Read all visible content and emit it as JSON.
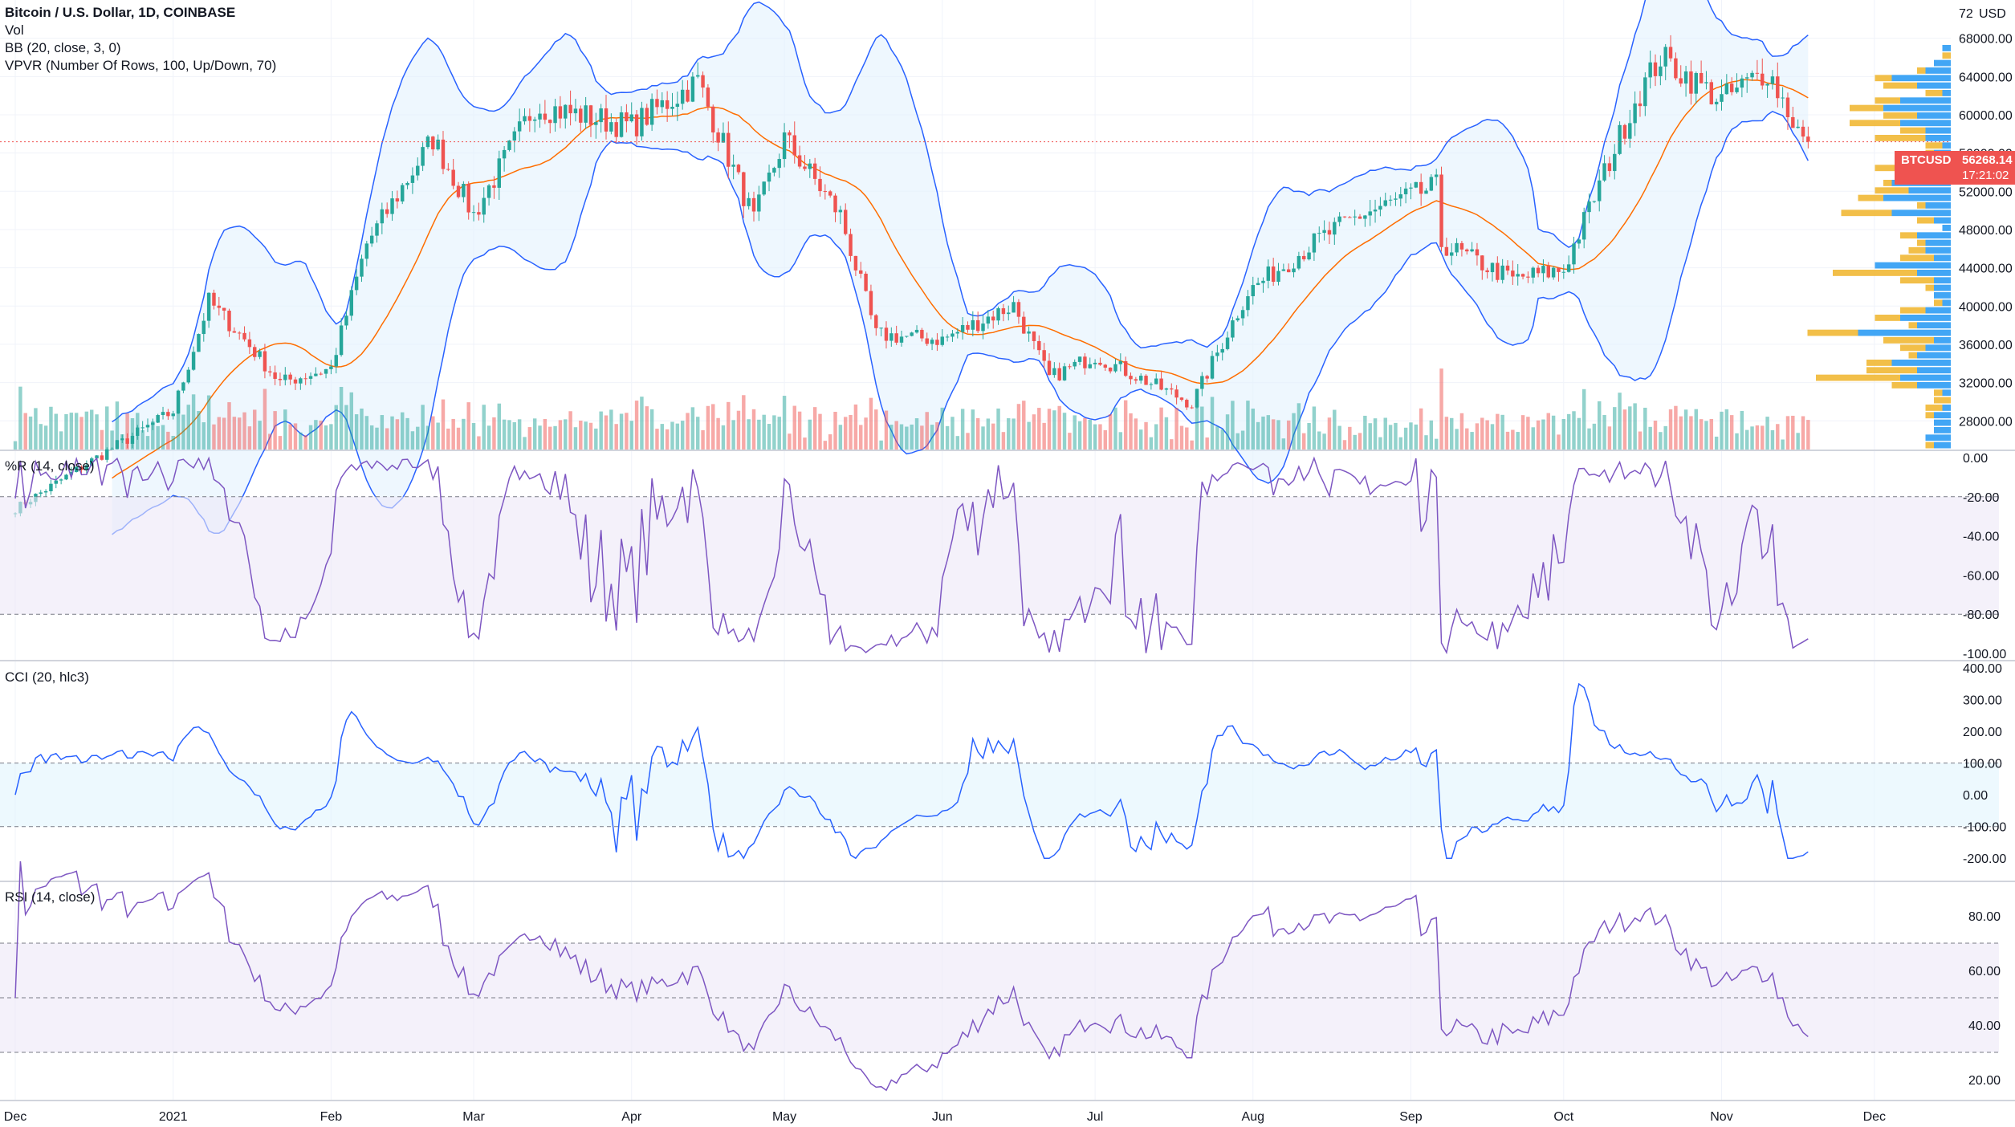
{
  "header": {
    "title": "Bitcoin / U.S. Dollar, 1D, COINBASE",
    "studies": [
      "Vol",
      "BB (20, close, 3, 0)",
      "VPVR (Number Of Rows, 100, Up/Down, 70)"
    ]
  },
  "panes": {
    "williams": "%R (14, close)",
    "cci": "CCI (20, hlc3)",
    "rsi": "RSI (14, close)"
  },
  "price_tag": {
    "symbol": "BTCUSD",
    "value": "56268.14",
    "countdown": "17:21:02"
  },
  "price_axis": {
    "unit": "USD",
    "top_label": "72",
    "ticks": [
      "68000.00",
      "64000.00",
      "60000.00",
      "56000.00",
      "52000.00",
      "48000.00",
      "44000.00",
      "40000.00",
      "36000.00",
      "32000.00",
      "28000.00"
    ]
  },
  "wr_axis": [
    "0.00",
    "-20.00",
    "-40.00",
    "-60.00",
    "-80.00",
    "-100.00"
  ],
  "cci_axis": [
    "400.00",
    "300.00",
    "200.00",
    "100.00",
    "0.00",
    "-100.00",
    "-200.00"
  ],
  "rsi_axis": [
    "80.00",
    "60.00",
    "40.00",
    "20.00"
  ],
  "time_axis": [
    "Dec",
    "2021",
    "Feb",
    "Mar",
    "Apr",
    "May",
    "Jun",
    "Jul",
    "Aug",
    "Sep",
    "Oct",
    "Nov",
    "Dec"
  ],
  "colors": {
    "up": "#26a69a",
    "down": "#ef5350",
    "bb_line": "#2962ff",
    "bb_fill": "#e3f2fd",
    "basis": "#ff6d00",
    "vp_up": "#2196f3",
    "vp_down": "#f0b429",
    "osc_line": "#7e57c2",
    "osc_fill": "#ede7f6",
    "cci_line": "#2962ff",
    "cci_fill": "#e1f5fe"
  },
  "chart_data": {
    "type": "candlestick",
    "symbol": "BTCUSD",
    "x": [
      "2020-12-01",
      "2020-12-15",
      "2021-01-01",
      "2021-01-08",
      "2021-01-15",
      "2021-01-22",
      "2021-02-01",
      "2021-02-08",
      "2021-02-21",
      "2021-03-01",
      "2021-03-13",
      "2021-04-01",
      "2021-04-14",
      "2021-04-25",
      "2021-05-01",
      "2021-05-12",
      "2021-05-19",
      "2021-06-01",
      "2021-06-15",
      "2021-06-22",
      "2021-07-01",
      "2021-07-20",
      "2021-07-31",
      "2021-08-14",
      "2021-08-22",
      "2021-09-06",
      "2021-09-07",
      "2021-09-21",
      "2021-10-01",
      "2021-10-15",
      "2021-10-20",
      "2021-11-01",
      "2021-11-10",
      "2021-11-18"
    ],
    "close": [
      18800,
      23500,
      29000,
      40500,
      36500,
      32000,
      33500,
      46500,
      57500,
      49500,
      61000,
      58800,
      63500,
      49000,
      57500,
      49500,
      37000,
      36500,
      40100,
      32500,
      34800,
      29800,
      41500,
      47000,
      49500,
      52500,
      46500,
      42800,
      43800,
      61500,
      66000,
      61500,
      64700,
      56300
    ],
    "ylim": [
      25000,
      72000
    ],
    "volume_profile": "Up/Down, 100 rows",
    "indicators": {
      "bollinger": "BB (20, close, 3, 0)",
      "williams_r_range": [
        -100,
        0
      ],
      "cci_range": [
        -200,
        400
      ],
      "rsi_range": [
        20,
        90
      ]
    }
  }
}
